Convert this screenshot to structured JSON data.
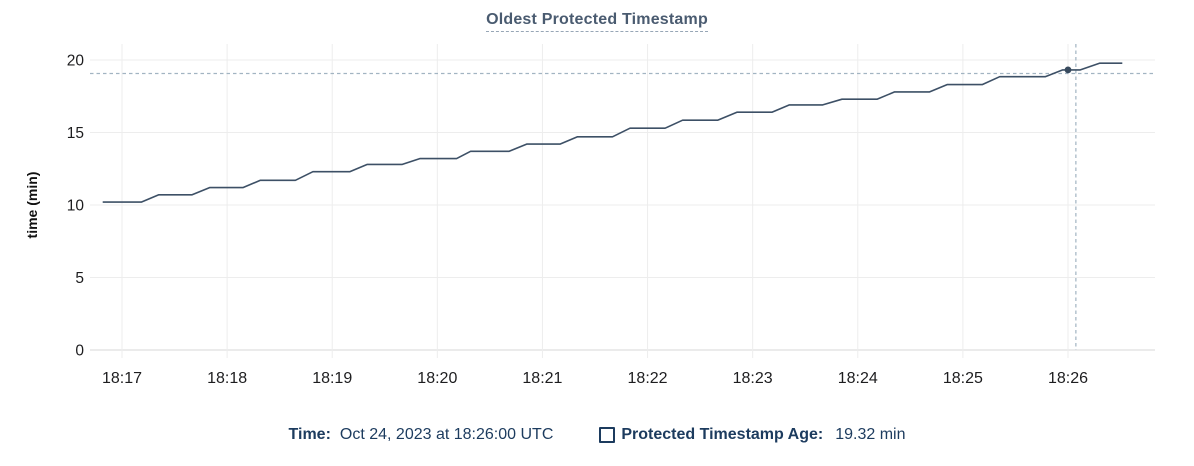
{
  "chart_data": {
    "type": "line",
    "title": "Oldest Protected Timestamp",
    "ylabel": "time (min)",
    "ylim": [
      0,
      20
    ],
    "y_ticks": [
      0,
      5,
      10,
      15,
      20
    ],
    "x_tick_labels": [
      "18:17",
      "18:18",
      "18:19",
      "18:20",
      "18:21",
      "18:22",
      "18:23",
      "18:24",
      "18:25",
      "18:26"
    ],
    "x_unit": "seconds since 18:16:00",
    "x_domain": [
      42,
      649
    ],
    "grid": true,
    "legend_position": "bottom",
    "series": [
      {
        "name": "Protected Timestamp Age",
        "unit": "min",
        "points": [
          [
            49,
            10.2
          ],
          [
            71,
            10.2
          ],
          [
            81,
            10.7
          ],
          [
            100,
            10.7
          ],
          [
            110,
            11.2
          ],
          [
            129,
            11.2
          ],
          [
            139,
            11.7
          ],
          [
            159,
            11.7
          ],
          [
            169,
            12.3
          ],
          [
            190,
            12.3
          ],
          [
            200,
            12.8
          ],
          [
            220,
            12.8
          ],
          [
            230,
            13.2
          ],
          [
            251,
            13.2
          ],
          [
            259,
            13.7
          ],
          [
            281,
            13.7
          ],
          [
            291,
            14.2
          ],
          [
            310,
            14.2
          ],
          [
            320,
            14.7
          ],
          [
            340,
            14.7
          ],
          [
            350,
            15.3
          ],
          [
            370,
            15.3
          ],
          [
            380,
            15.85
          ],
          [
            400,
            15.85
          ],
          [
            411,
            16.4
          ],
          [
            431,
            16.4
          ],
          [
            441,
            16.9
          ],
          [
            460,
            16.9
          ],
          [
            471,
            17.3
          ],
          [
            491,
            17.3
          ],
          [
            501,
            17.8
          ],
          [
            521,
            17.8
          ],
          [
            531,
            18.3
          ],
          [
            551,
            18.3
          ],
          [
            561,
            18.85
          ],
          [
            587,
            18.85
          ],
          [
            597,
            19.32
          ],
          [
            607,
            19.32
          ],
          [
            618,
            19.78
          ],
          [
            631,
            19.78
          ]
        ]
      }
    ],
    "hover": {
      "point": [
        600,
        19.32
      ],
      "crosshair_t": 604.5,
      "crosshair_value": 19.07
    }
  },
  "legend": {
    "time_key": "Time:",
    "time_value": "Oct 24, 2023 at 18:26:00 UTC",
    "series_key": "Protected Timestamp Age:",
    "series_value": "19.32 min",
    "series_checkbox_checked": false
  },
  "colors": {
    "line": "#3d5066",
    "dot": "#384a5e",
    "crosshair": "#a2b4c2",
    "grid": "#ededed",
    "baseline": "#d7d7d7",
    "tick_text": "#1d1d1f",
    "title_text": "#4a5b70",
    "title_underline": "#97a6b6",
    "legend_text": "#1c3b5e"
  }
}
